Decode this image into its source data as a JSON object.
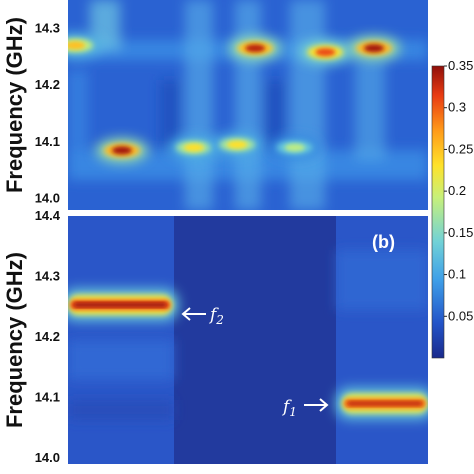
{
  "chart_data": [
    {
      "panel": "a",
      "type": "heatmap",
      "ylabel": "Frequency (GHz)",
      "ylim": [
        13.98,
        14.35
      ],
      "yticks": [
        "14.0",
        "14.1",
        "14.2",
        "14.3"
      ],
      "yvalues": [
        14.0,
        14.1,
        14.2,
        14.3
      ],
      "hotspots": [
        {
          "x": 0.02,
          "y": 14.27,
          "v": 0.24
        },
        {
          "x": 0.52,
          "y": 14.265,
          "v": 0.33
        },
        {
          "x": 0.715,
          "y": 14.258,
          "v": 0.3
        },
        {
          "x": 0.85,
          "y": 14.265,
          "v": 0.34
        },
        {
          "x": 0.15,
          "y": 14.085,
          "v": 0.34
        },
        {
          "x": 0.35,
          "y": 14.09,
          "v": 0.22
        },
        {
          "x": 0.47,
          "y": 14.095,
          "v": 0.22
        },
        {
          "x": 0.63,
          "y": 14.09,
          "v": 0.17
        }
      ]
    },
    {
      "panel": "b",
      "type": "heatmap",
      "label": "(b)",
      "ylabel": "Frequency (GHz)",
      "ylim": [
        13.99,
        14.4
      ],
      "yticks": [
        "14.0",
        "14.1",
        "14.2",
        "14.3",
        "14.4"
      ],
      "yvalues": [
        14.0,
        14.1,
        14.2,
        14.3,
        14.4
      ],
      "bands": [
        {
          "name": "f2",
          "x_start": 0.0,
          "x_end": 0.29,
          "y": 14.253,
          "v": 0.35
        },
        {
          "name": "f1",
          "x_start": 0.76,
          "x_end": 1.0,
          "y": 14.09,
          "v": 0.33
        }
      ],
      "annotations": [
        {
          "symbol": "f",
          "subscript": "2",
          "points_to": "f2"
        },
        {
          "symbol": "f",
          "subscript": "1",
          "points_to": "f1"
        }
      ]
    }
  ],
  "colorbar": {
    "min": 0,
    "max": 0.35,
    "ticks": [
      "0.05",
      "0.1",
      "0.15",
      "0.2",
      "0.25",
      "0.3",
      "0.35"
    ],
    "values": [
      0.05,
      0.1,
      0.15,
      0.2,
      0.25,
      0.3,
      0.35
    ],
    "colormap": [
      "#1a2a8c",
      "#2354c8",
      "#3fa0e8",
      "#72d2d6",
      "#c7f07a",
      "#ffe22a",
      "#ff9a1a",
      "#e83a12",
      "#8f0f0a"
    ]
  }
}
